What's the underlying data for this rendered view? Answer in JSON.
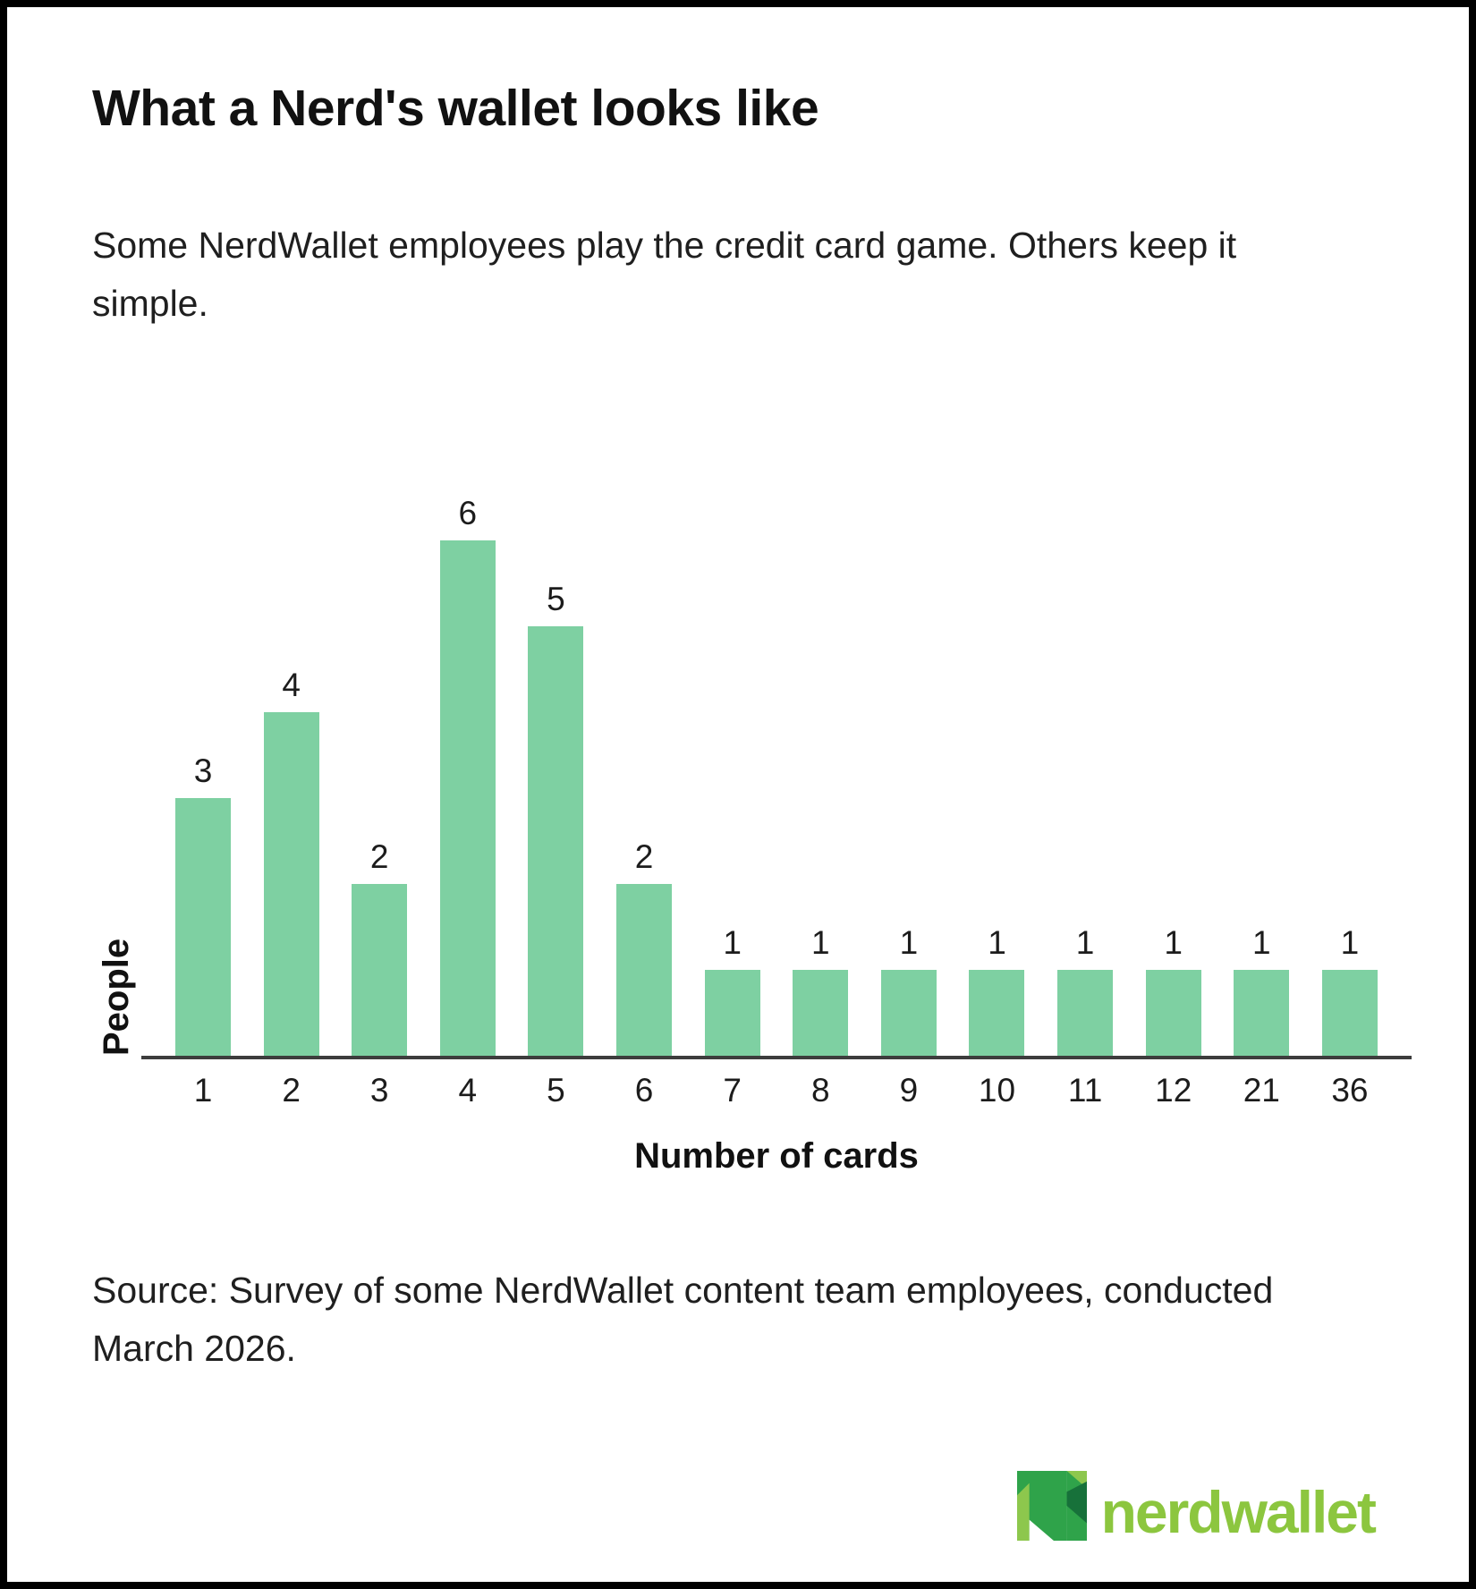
{
  "header": {
    "title": "What a Nerd's wallet looks like",
    "subtitle": "Some NerdWallet employees play the credit card game. Others keep it simple."
  },
  "chart_data": {
    "type": "bar",
    "categories": [
      "1",
      "2",
      "3",
      "4",
      "5",
      "6",
      "7",
      "8",
      "9",
      "10",
      "11",
      "12",
      "21",
      "36"
    ],
    "values": [
      3,
      4,
      2,
      6,
      5,
      2,
      1,
      1,
      1,
      1,
      1,
      1,
      1,
      1
    ],
    "title": "What a Nerd's wallet looks like",
    "xlabel": "Number of cards",
    "ylabel": "People",
    "ylim": [
      0,
      6
    ],
    "grid": false,
    "legend": "none",
    "data_labels": true,
    "bar_color": "#7ed0a2"
  },
  "source": {
    "text": "Source: Survey of some NerdWallet content team employees, conducted March 2026."
  },
  "logo": {
    "wordmark": "nerdwallet",
    "mark_name": "nerdwallet-n-mark"
  },
  "colors": {
    "bar": "#7ed0a2",
    "axis": "#3d3d3d",
    "ink": "#1b1b1b",
    "logo_light": "#8dc74d",
    "logo_medium": "#2fa34a",
    "logo_dark": "#17713a",
    "logo_wordmark": "#8cc63f"
  }
}
